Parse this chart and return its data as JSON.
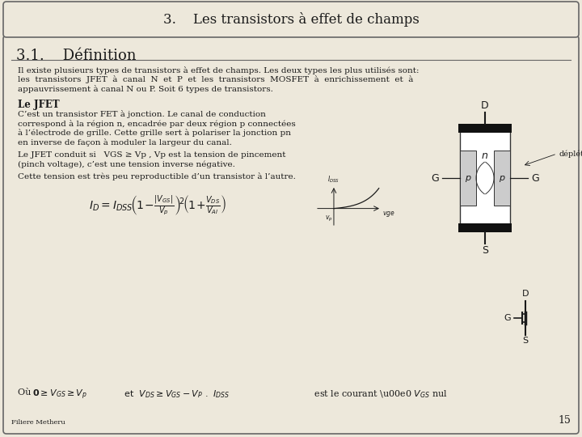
{
  "bg_color": "#ede8db",
  "title_box_text": "3.    Les transistors à effet de champs",
  "section_title": "3.1.    Définition",
  "para1_lines": [
    "Il existe plusieurs types de transistors à effet de champs. Les deux types les plus utilisés sont:",
    "les  transistors  JFET  à  canal  N  et  P  et  les  transistors  MOSFET  à  enrichissement  et  à",
    "appauvrissement à canal N ou P. Soit 6 types de transistors."
  ],
  "jfet_header": "Le JFET",
  "para2_lines": [
    "C’est un transistor FET à jonction. Le canal de conduction",
    "correspond à la région n, encadrée par deux région p connectées",
    "à l’électrode de grille. Cette grille sert à polariser la jonction pn",
    "en inverse de façon à moduler la largeur du canal."
  ],
  "para3_lines": [
    "Le JFET conduit si   VGS ≥ Vp , Vp est la tension de pincement",
    "(pinch voltage), c’est une tension inverse négative."
  ],
  "para4": "Cette tension est très peu reproductible d’un transistor à l’autre.",
  "where_text": "Où  0 ≥ VGS ≥ Vp  et  VDS ≥ VGS − VP .  IDSS est le courant à VGS nul",
  "footer": "Filiere Metheru",
  "page_num": "15",
  "text_color": "#1a1a1a",
  "border_color": "#666666"
}
